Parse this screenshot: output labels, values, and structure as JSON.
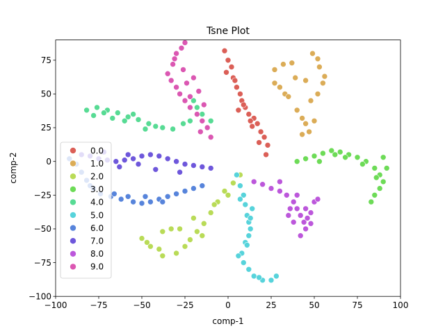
{
  "chart_data": {
    "type": "scatter",
    "title": "Tsne Plot",
    "xlabel": "comp-1",
    "ylabel": "comp-2",
    "xlim": [
      -100,
      100
    ],
    "ylim": [
      -100,
      90
    ],
    "xticks": [
      -100,
      -75,
      -50,
      -25,
      0,
      25,
      50,
      75,
      100
    ],
    "yticks": [
      -100,
      -75,
      -50,
      -25,
      0,
      25,
      50,
      75
    ],
    "grid": false,
    "legend_position": "center-left",
    "series": [
      {
        "name": "0.0",
        "color": "#db5f57",
        "points": [
          [
            -2,
            82
          ],
          [
            0,
            75
          ],
          [
            2,
            70
          ],
          [
            3,
            62
          ],
          [
            5,
            55
          ],
          [
            7,
            50
          ],
          [
            8,
            45
          ],
          [
            10,
            40
          ],
          [
            12,
            35
          ],
          [
            15,
            32
          ],
          [
            17,
            28
          ],
          [
            19,
            22
          ],
          [
            21,
            18
          ],
          [
            23,
            12
          ],
          [
            22,
            5
          ],
          [
            -1,
            66
          ],
          [
            4,
            60
          ],
          [
            9,
            42
          ],
          [
            14,
            26
          ],
          [
            18,
            14
          ],
          [
            6,
            38
          ],
          [
            13,
            30
          ]
        ]
      },
      {
        "name": "1.0",
        "color": "#dbac57",
        "points": [
          [
            27,
            68
          ],
          [
            32,
            72
          ],
          [
            37,
            73
          ],
          [
            27,
            58
          ],
          [
            30,
            55
          ],
          [
            33,
            50
          ],
          [
            35,
            48
          ],
          [
            40,
            38
          ],
          [
            43,
            32
          ],
          [
            45,
            28
          ],
          [
            43,
            20
          ],
          [
            47,
            22
          ],
          [
            50,
            30
          ],
          [
            48,
            45
          ],
          [
            52,
            50
          ],
          [
            55,
            58
          ],
          [
            56,
            63
          ],
          [
            53,
            70
          ],
          [
            52,
            76
          ],
          [
            49,
            80
          ],
          [
            39,
            62
          ],
          [
            45,
            60
          ]
        ]
      },
      {
        "name": "2.0",
        "color": "#b9db57",
        "points": [
          [
            -50,
            -57
          ],
          [
            -45,
            -63
          ],
          [
            -38,
            -70
          ],
          [
            -30,
            -68
          ],
          [
            -25,
            -63
          ],
          [
            -22,
            -58
          ],
          [
            -18,
            -52
          ],
          [
            -14,
            -46
          ],
          [
            -10,
            -38
          ],
          [
            -6,
            -30
          ],
          [
            -2,
            -22
          ],
          [
            3,
            -16
          ],
          [
            7,
            -10
          ],
          [
            -33,
            -50
          ],
          [
            -38,
            -52
          ],
          [
            -28,
            -50
          ],
          [
            -40,
            -65
          ],
          [
            -15,
            -55
          ],
          [
            -8,
            -32
          ],
          [
            0,
            -25
          ],
          [
            -47,
            -60
          ],
          [
            -20,
            -42
          ]
        ]
      },
      {
        "name": "3.0",
        "color": "#6ddb57",
        "points": [
          [
            40,
            0
          ],
          [
            45,
            2
          ],
          [
            50,
            4
          ],
          [
            55,
            6
          ],
          [
            60,
            8
          ],
          [
            65,
            7
          ],
          [
            70,
            5
          ],
          [
            75,
            3
          ],
          [
            80,
            0
          ],
          [
            85,
            -5
          ],
          [
            88,
            -10
          ],
          [
            90,
            -15
          ],
          [
            88,
            -20
          ],
          [
            85,
            -25
          ],
          [
            83,
            -30
          ],
          [
            90,
            3
          ],
          [
            92,
            -5
          ],
          [
            78,
            -2
          ],
          [
            62,
            5
          ],
          [
            53,
            0
          ],
          [
            68,
            3
          ],
          [
            86,
            -12
          ]
        ]
      },
      {
        "name": "4.0",
        "color": "#57db94",
        "points": [
          [
            -82,
            38
          ],
          [
            -76,
            40
          ],
          [
            -70,
            38
          ],
          [
            -64,
            36
          ],
          [
            -58,
            33
          ],
          [
            -52,
            31
          ],
          [
            -46,
            28
          ],
          [
            -42,
            26
          ],
          [
            -38,
            25
          ],
          [
            -32,
            24
          ],
          [
            -26,
            28
          ],
          [
            -22,
            30
          ],
          [
            -18,
            40
          ],
          [
            -15,
            35
          ],
          [
            -10,
            30
          ],
          [
            -78,
            34
          ],
          [
            -67,
            32
          ],
          [
            -60,
            30
          ],
          [
            -48,
            24
          ],
          [
            -72,
            36
          ],
          [
            -55,
            35
          ],
          [
            -20,
            45
          ]
        ]
      },
      {
        "name": "5.0",
        "color": "#57d3db",
        "points": [
          [
            5,
            -10
          ],
          [
            7,
            -18
          ],
          [
            9,
            -25
          ],
          [
            10,
            -32
          ],
          [
            11,
            -40
          ],
          [
            12,
            -45
          ],
          [
            13,
            -50
          ],
          [
            12,
            -55
          ],
          [
            10,
            -60
          ],
          [
            8,
            -68
          ],
          [
            9,
            -75
          ],
          [
            12,
            -80
          ],
          [
            15,
            -85
          ],
          [
            20,
            -88
          ],
          [
            25,
            -88
          ],
          [
            28,
            -85
          ],
          [
            14,
            -35
          ],
          [
            6,
            -70
          ],
          [
            18,
            -86
          ],
          [
            11,
            -62
          ],
          [
            13,
            -42
          ],
          [
            7,
            -28
          ]
        ]
      },
      {
        "name": "6.0",
        "color": "#5784db",
        "points": [
          [
            -92,
            2
          ],
          [
            -88,
            -2
          ],
          [
            -85,
            -8
          ],
          [
            -82,
            -14
          ],
          [
            -78,
            -20
          ],
          [
            -74,
            -24
          ],
          [
            -68,
            -26
          ],
          [
            -62,
            -28
          ],
          [
            -55,
            -30
          ],
          [
            -50,
            -31
          ],
          [
            -45,
            -30
          ],
          [
            -40,
            -28
          ],
          [
            -35,
            -26
          ],
          [
            -30,
            -24
          ],
          [
            -25,
            -22
          ],
          [
            -20,
            -20
          ],
          [
            -15,
            -18
          ],
          [
            -80,
            -18
          ],
          [
            -66,
            -24
          ],
          [
            -58,
            -26
          ],
          [
            -48,
            -26
          ],
          [
            -38,
            -30
          ]
        ]
      },
      {
        "name": "7.0",
        "color": "#6e57db",
        "points": [
          [
            -85,
            5
          ],
          [
            -80,
            4
          ],
          [
            -75,
            2
          ],
          [
            -70,
            1
          ],
          [
            -65,
            0
          ],
          [
            -60,
            1
          ],
          [
            -55,
            2
          ],
          [
            -50,
            4
          ],
          [
            -45,
            5
          ],
          [
            -40,
            4
          ],
          [
            -35,
            2
          ],
          [
            -30,
            0
          ],
          [
            -25,
            -2
          ],
          [
            -20,
            -3
          ],
          [
            -15,
            -4
          ],
          [
            -10,
            -5
          ],
          [
            -72,
            7
          ],
          [
            -63,
            -4
          ],
          [
            -52,
            -2
          ],
          [
            -42,
            -6
          ],
          [
            -28,
            -8
          ],
          [
            -58,
            5
          ]
        ]
      },
      {
        "name": "8.0",
        "color": "#bc57db",
        "points": [
          [
            15,
            -15
          ],
          [
            20,
            -17
          ],
          [
            25,
            -20
          ],
          [
            30,
            -22
          ],
          [
            34,
            -25
          ],
          [
            38,
            -30
          ],
          [
            40,
            -35
          ],
          [
            42,
            -40
          ],
          [
            44,
            -45
          ],
          [
            46,
            -42
          ],
          [
            48,
            -38
          ],
          [
            50,
            -30
          ],
          [
            52,
            -28
          ],
          [
            45,
            -50
          ],
          [
            42,
            -55
          ],
          [
            35,
            -40
          ],
          [
            38,
            -45
          ],
          [
            48,
            -46
          ],
          [
            40,
            -25
          ],
          [
            30,
            -15
          ],
          [
            45,
            -35
          ],
          [
            36,
            -35
          ]
        ]
      },
      {
        "name": "9.0",
        "color": "#db57b2",
        "points": [
          [
            -25,
            88
          ],
          [
            -30,
            80
          ],
          [
            -32,
            72
          ],
          [
            -35,
            65
          ],
          [
            -33,
            60
          ],
          [
            -30,
            55
          ],
          [
            -28,
            50
          ],
          [
            -25,
            45
          ],
          [
            -22,
            40
          ],
          [
            -18,
            35
          ],
          [
            -15,
            30
          ],
          [
            -12,
            25
          ],
          [
            -10,
            18
          ],
          [
            -20,
            62
          ],
          [
            -26,
            68
          ],
          [
            -17,
            52
          ],
          [
            -27,
            84
          ],
          [
            -31,
            76
          ],
          [
            -24,
            58
          ],
          [
            -14,
            42
          ],
          [
            -22,
            48
          ],
          [
            -16,
            22
          ]
        ]
      }
    ]
  }
}
